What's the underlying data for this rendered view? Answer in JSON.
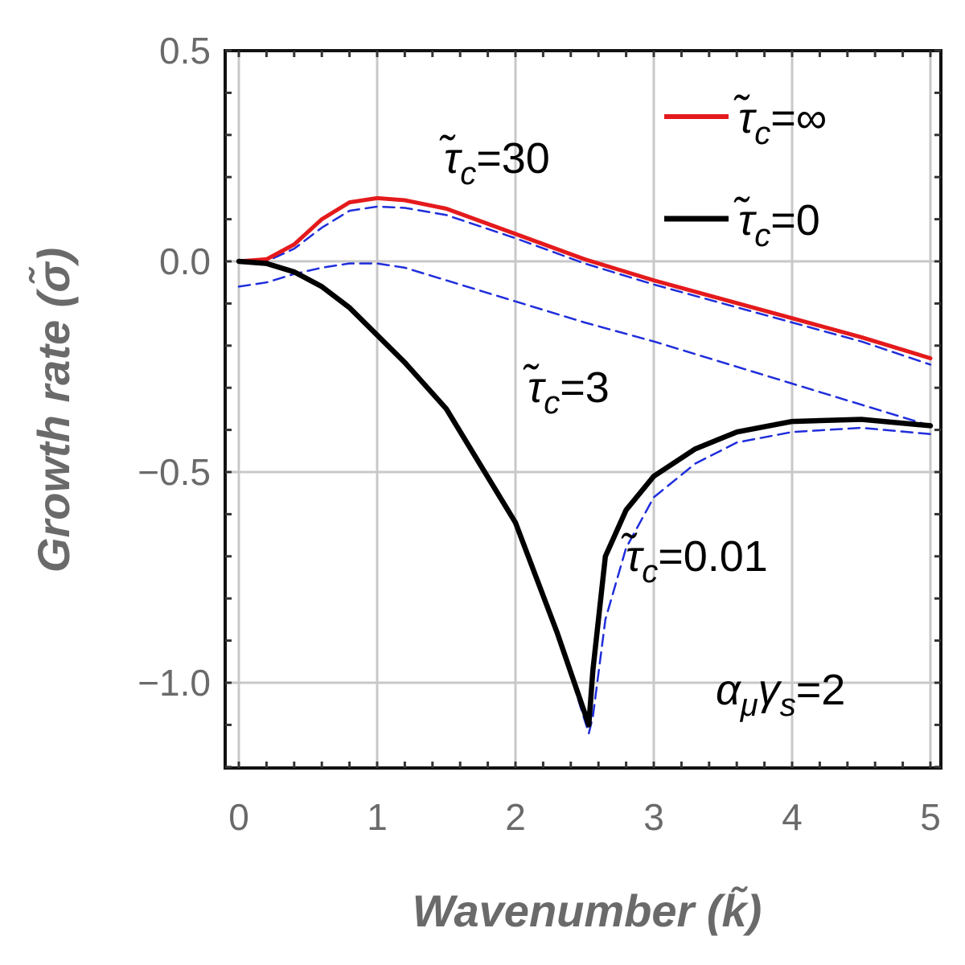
{
  "chart_data": {
    "type": "line",
    "title": "",
    "xlabel": "Wavenumber (k̃)",
    "ylabel": "Growth rate (σ̃)",
    "xlim": [
      0,
      5
    ],
    "ylim": [
      -1.2,
      0.5
    ],
    "x_ticks": [
      0,
      1,
      2,
      3,
      4,
      5
    ],
    "x_tick_labels": [
      "0",
      "1",
      "2",
      "3",
      "4",
      "5"
    ],
    "y_ticks": [
      0.5,
      0.0,
      -0.5,
      -1.0
    ],
    "y_tick_labels": [
      "0.5",
      "0.0",
      "−0.5",
      "−1.0"
    ],
    "grid": true,
    "legend_placement": "top-right",
    "legend": [
      {
        "label": "τ̃",
        "sub": "c",
        "value": "=∞",
        "color": "#e41a1c",
        "series": "tau_inf"
      },
      {
        "label": "τ̃",
        "sub": "c",
        "value": "=0",
        "color": "#000000",
        "series": "tau_0"
      }
    ],
    "annotations": [
      {
        "label": "τ̃",
        "sub": "c",
        "value": "=30"
      },
      {
        "label": "τ̃",
        "sub": "c",
        "value": "=3"
      },
      {
        "label": "τ̃",
        "sub": "c",
        "value": "=0.01"
      },
      {
        "label": "α",
        "sub": "μ",
        "label2": "γ",
        "sub2": "s",
        "value": "=2"
      }
    ],
    "series": [
      {
        "id": "tau_inf",
        "color": "#e41a1c",
        "style": "solid",
        "x": [
          0,
          0.2,
          0.4,
          0.6,
          0.8,
          1.0,
          1.2,
          1.5,
          2.0,
          2.5,
          3.0,
          3.5,
          4.0,
          4.5,
          5.0
        ],
        "y": [
          0.0,
          0.005,
          0.04,
          0.1,
          0.14,
          0.15,
          0.145,
          0.125,
          0.065,
          0.005,
          -0.045,
          -0.09,
          -0.135,
          -0.18,
          -0.23
        ]
      },
      {
        "id": "tau_0",
        "color": "#000000",
        "style": "solid",
        "x": [
          0,
          0.2,
          0.4,
          0.6,
          0.8,
          1.0,
          1.2,
          1.5,
          2.0,
          2.3,
          2.53,
          2.56,
          2.65,
          2.8,
          3.0,
          3.3,
          3.6,
          4.0,
          4.5,
          5.0
        ],
        "y": [
          0.0,
          -0.005,
          -0.025,
          -0.06,
          -0.11,
          -0.175,
          -0.24,
          -0.35,
          -0.62,
          -0.88,
          -1.1,
          -0.97,
          -0.7,
          -0.59,
          -0.51,
          -0.445,
          -0.405,
          -0.38,
          -0.375,
          -0.39
        ]
      },
      {
        "id": "tau_30",
        "color": "#1f2ddb",
        "style": "dashed",
        "x": [
          0,
          0.2,
          0.4,
          0.6,
          0.8,
          1.0,
          1.2,
          1.5,
          2.0,
          2.5,
          3.0,
          3.5,
          4.0,
          4.5,
          5.0
        ],
        "y": [
          0.0,
          0.0,
          0.03,
          0.08,
          0.12,
          0.13,
          0.127,
          0.11,
          0.055,
          -0.005,
          -0.055,
          -0.1,
          -0.145,
          -0.19,
          -0.245
        ]
      },
      {
        "id": "tau_3",
        "color": "#1f2ddb",
        "style": "dashed",
        "x": [
          0,
          0.2,
          0.4,
          0.6,
          0.8,
          1.0,
          1.2,
          1.5,
          2.0,
          2.5,
          3.0,
          3.5,
          4.0,
          4.5,
          5.0
        ],
        "y": [
          -0.06,
          -0.05,
          -0.03,
          -0.015,
          -0.005,
          -0.005,
          -0.015,
          -0.045,
          -0.095,
          -0.145,
          -0.19,
          -0.24,
          -0.29,
          -0.34,
          -0.39
        ]
      },
      {
        "id": "tau_001",
        "color": "#1f2ddb",
        "style": "dashed",
        "x": [
          0,
          0.2,
          0.4,
          0.6,
          0.8,
          1.0,
          1.2,
          1.5,
          2.0,
          2.3,
          2.53,
          2.56,
          2.65,
          2.8,
          3.0,
          3.3,
          3.6,
          4.0,
          4.5,
          5.0
        ],
        "y": [
          0.0,
          -0.005,
          -0.025,
          -0.06,
          -0.11,
          -0.175,
          -0.24,
          -0.35,
          -0.62,
          -0.88,
          -1.12,
          -1.08,
          -0.85,
          -0.68,
          -0.56,
          -0.48,
          -0.43,
          -0.405,
          -0.395,
          -0.41
        ]
      }
    ]
  }
}
